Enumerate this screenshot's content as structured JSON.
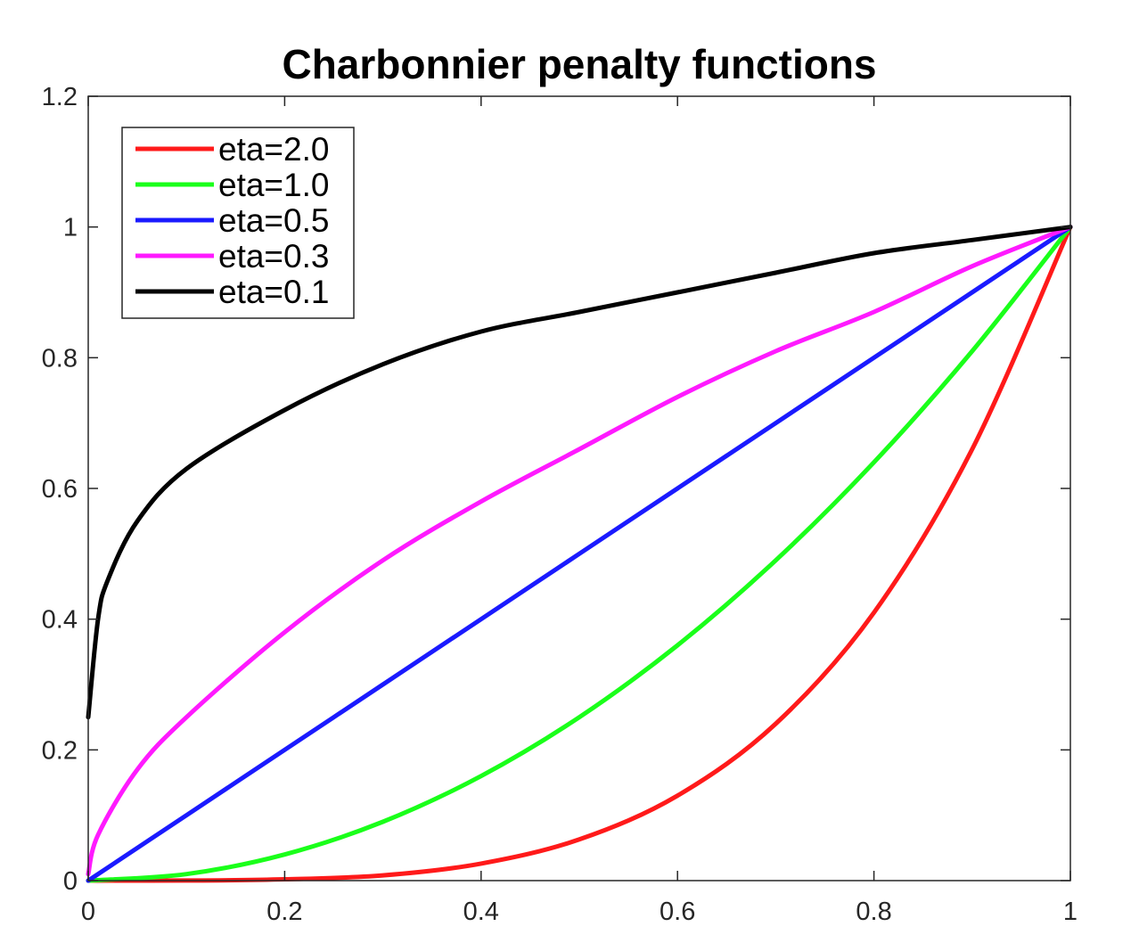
{
  "chart_data": {
    "type": "line",
    "title": "Charbonnier penalty functions",
    "xlabel": "",
    "ylabel": "",
    "xlim": [
      0,
      1
    ],
    "ylim": [
      0,
      1.2
    ],
    "x_ticks": [
      "0",
      "0.2",
      "0.4",
      "0.6",
      "0.8",
      "1"
    ],
    "y_ticks": [
      "0",
      "0.2",
      "0.4",
      "0.6",
      "0.8",
      "1",
      "1.2"
    ],
    "grid": false,
    "legend_position": "top-left",
    "series": [
      {
        "name": "eta=2.0",
        "color": "#ff1a1a",
        "x": [
          0,
          0.1,
          0.2,
          0.3,
          0.4,
          0.5,
          0.6,
          0.7,
          0.8,
          0.9,
          1
        ],
        "y": [
          0,
          0.0001,
          0.002,
          0.008,
          0.026,
          0.063,
          0.13,
          0.24,
          0.41,
          0.66,
          1
        ]
      },
      {
        "name": "eta=1.0",
        "color": "#1aff1a",
        "x": [
          0,
          0.1,
          0.2,
          0.3,
          0.4,
          0.5,
          0.6,
          0.7,
          0.8,
          0.9,
          1
        ],
        "y": [
          0,
          0.01,
          0.04,
          0.09,
          0.16,
          0.25,
          0.36,
          0.49,
          0.64,
          0.81,
          1
        ]
      },
      {
        "name": "eta=0.5",
        "color": "#1a1aff",
        "x": [
          0,
          0.1,
          0.2,
          0.3,
          0.4,
          0.5,
          0.6,
          0.7,
          0.8,
          0.9,
          1
        ],
        "y": [
          0,
          0.1,
          0.2,
          0.3,
          0.4,
          0.5,
          0.6,
          0.7,
          0.8,
          0.9,
          1
        ]
      },
      {
        "name": "eta=0.3",
        "color": "#ff1aff",
        "x": [
          0,
          0.01,
          0.05,
          0.1,
          0.2,
          0.3,
          0.4,
          0.5,
          0.6,
          0.7,
          0.8,
          0.9,
          1
        ],
        "y": [
          0.01,
          0.07,
          0.17,
          0.25,
          0.38,
          0.49,
          0.58,
          0.66,
          0.74,
          0.81,
          0.87,
          0.94,
          1
        ]
      },
      {
        "name": "eta=0.1",
        "color": "#000000",
        "x": [
          0,
          0.01,
          0.02,
          0.05,
          0.1,
          0.2,
          0.3,
          0.4,
          0.5,
          0.6,
          0.7,
          0.8,
          0.9,
          1
        ],
        "y": [
          0.25,
          0.4,
          0.46,
          0.55,
          0.63,
          0.72,
          0.79,
          0.84,
          0.87,
          0.9,
          0.93,
          0.96,
          0.98,
          1
        ]
      }
    ]
  }
}
